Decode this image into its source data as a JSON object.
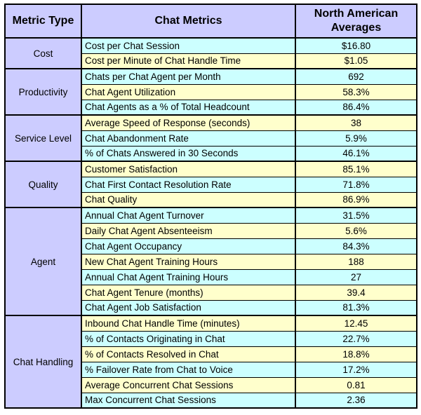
{
  "colors": {
    "header_bg": "#CCCCFF",
    "category_bg": "#CCCCFF",
    "row_cyan": "#CCFFFF",
    "row_yellow": "#FFFFCC",
    "border": "#000000",
    "text": "#000000",
    "page_bg": "#FFFFFF"
  },
  "table": {
    "headers": [
      {
        "label": "Metric Type"
      },
      {
        "label": "Chat Metrics"
      },
      {
        "label": "North American Averages"
      }
    ],
    "groups": [
      {
        "category": "Cost",
        "rows": [
          {
            "metric": "Cost per Chat Session",
            "value": "$16.80",
            "tone": "cyan"
          },
          {
            "metric": "Cost per Minute of Chat Handle Time",
            "value": "$1.05",
            "tone": "yellow"
          }
        ]
      },
      {
        "category": "Productivity",
        "rows": [
          {
            "metric": "Chats per Chat Agent per Month",
            "value": "692",
            "tone": "cyan"
          },
          {
            "metric": "Chat Agent Utilization",
            "value": "58.3%",
            "tone": "yellow"
          },
          {
            "metric": "Chat Agents as a % of Total Headcount",
            "value": "86.4%",
            "tone": "cyan"
          }
        ]
      },
      {
        "category": "Service Level",
        "rows": [
          {
            "metric": "Average Speed of Response (seconds)",
            "value": "38",
            "tone": "yellow"
          },
          {
            "metric": "Chat Abandonment Rate",
            "value": "5.9%",
            "tone": "cyan"
          },
          {
            "metric": "% of Chats Answered in 30 Seconds",
            "value": "46.1%",
            "tone": "cyan"
          }
        ]
      },
      {
        "category": "Quality",
        "rows": [
          {
            "metric": "Customer Satisfaction",
            "value": "85.1%",
            "tone": "yellow"
          },
          {
            "metric": "Chat First Contact Resolution Rate",
            "value": "71.8%",
            "tone": "cyan"
          },
          {
            "metric": "Chat Quality",
            "value": "86.9%",
            "tone": "yellow"
          }
        ]
      },
      {
        "category": "Agent",
        "rows": [
          {
            "metric": "Annual Chat Agent Turnover",
            "value": "31.5%",
            "tone": "cyan"
          },
          {
            "metric": "Daily Chat Agent Absenteeism",
            "value": "5.6%",
            "tone": "yellow"
          },
          {
            "metric": "Chat Agent Occupancy",
            "value": "84.3%",
            "tone": "cyan"
          },
          {
            "metric": "New Chat Agent Training Hours",
            "value": "188",
            "tone": "yellow"
          },
          {
            "metric": "Annual Chat Agent Training Hours",
            "value": "27",
            "tone": "cyan"
          },
          {
            "metric": "Chat Agent Tenure (months)",
            "value": "39.4",
            "tone": "yellow"
          },
          {
            "metric": "Chat Agent Job Satisfaction",
            "value": "81.3%",
            "tone": "cyan"
          }
        ]
      },
      {
        "category": "Chat Handling",
        "rows": [
          {
            "metric": "Inbound Chat Handle Time (minutes)",
            "value": "12.45",
            "tone": "yellow"
          },
          {
            "metric": "% of Contacts Originating in Chat",
            "value": "22.7%",
            "tone": "cyan"
          },
          {
            "metric": "% of Contacts Resolved in Chat",
            "value": "18.8%",
            "tone": "yellow"
          },
          {
            "metric": "% Failover Rate from Chat to Voice",
            "value": "17.2%",
            "tone": "cyan"
          },
          {
            "metric": "Average Concurrent Chat Sessions",
            "value": "0.81",
            "tone": "yellow"
          },
          {
            "metric": "Max Concurrent Chat Sessions",
            "value": "2.36",
            "tone": "cyan"
          }
        ]
      }
    ]
  },
  "chart_data": {
    "type": "table",
    "title": "",
    "columns": [
      "Metric Type",
      "Chat Metrics",
      "North American Averages"
    ],
    "rows": [
      [
        "Cost",
        "Cost per Chat Session",
        "$16.80"
      ],
      [
        "Cost",
        "Cost per Minute of Chat Handle Time",
        "$1.05"
      ],
      [
        "Productivity",
        "Chats per Chat Agent per Month",
        "692"
      ],
      [
        "Productivity",
        "Chat Agent Utilization",
        "58.3%"
      ],
      [
        "Productivity",
        "Chat Agents as a % of Total Headcount",
        "86.4%"
      ],
      [
        "Service Level",
        "Average Speed of Response (seconds)",
        "38"
      ],
      [
        "Service Level",
        "Chat Abandonment Rate",
        "5.9%"
      ],
      [
        "Service Level",
        "% of Chats Answered in 30 Seconds",
        "46.1%"
      ],
      [
        "Quality",
        "Customer Satisfaction",
        "85.1%"
      ],
      [
        "Quality",
        "Chat First Contact Resolution Rate",
        "71.8%"
      ],
      [
        "Quality",
        "Chat Quality",
        "86.9%"
      ],
      [
        "Agent",
        "Annual Chat Agent Turnover",
        "31.5%"
      ],
      [
        "Agent",
        "Daily Chat Agent Absenteeism",
        "5.6%"
      ],
      [
        "Agent",
        "Chat Agent Occupancy",
        "84.3%"
      ],
      [
        "Agent",
        "New Chat Agent Training Hours",
        "188"
      ],
      [
        "Agent",
        "Annual Chat Agent Training Hours",
        "27"
      ],
      [
        "Agent",
        "Chat Agent Tenure (months)",
        "39.4"
      ],
      [
        "Agent",
        "Chat Agent Job Satisfaction",
        "81.3%"
      ],
      [
        "Chat Handling",
        "Inbound Chat Handle Time (minutes)",
        "12.45"
      ],
      [
        "Chat Handling",
        "% of Contacts Originating in Chat",
        "22.7%"
      ],
      [
        "Chat Handling",
        "% of Contacts Resolved in Chat",
        "18.8%"
      ],
      [
        "Chat Handling",
        "% Failover Rate from Chat to Voice",
        "17.2%"
      ],
      [
        "Chat Handling",
        "Average Concurrent Chat Sessions",
        "0.81"
      ],
      [
        "Chat Handling",
        "Max Concurrent Chat Sessions",
        "2.36"
      ]
    ]
  }
}
